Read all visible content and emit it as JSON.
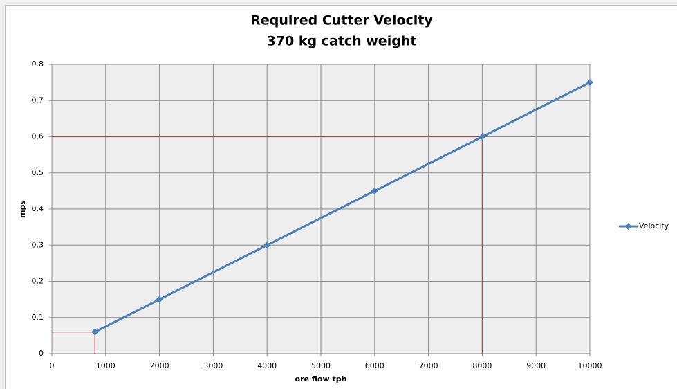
{
  "chart_data": {
    "type": "line",
    "title": [
      "Required Cutter Velocity",
      "370 kg catch weight"
    ],
    "x_label": "ore flow tph",
    "y_label": "mps",
    "x": [
      800,
      2000,
      4000,
      6000,
      8000,
      10000
    ],
    "series": [
      {
        "name": "Velocity",
        "color": "#4a7ebb",
        "values": [
          0.06,
          0.15,
          0.3,
          0.45,
          0.6,
          0.75
        ]
      }
    ],
    "xlim": [
      0,
      10000
    ],
    "xticks": [
      0,
      1000,
      2000,
      3000,
      4000,
      5000,
      6000,
      7000,
      8000,
      9000,
      10000
    ],
    "ylim": [
      0,
      0.8
    ],
    "yticks": [
      0,
      0.1,
      0.2,
      0.3,
      0.4,
      0.5,
      0.6,
      0.7,
      0.8
    ],
    "grid": true,
    "legend": "right",
    "reference_lines": [
      {
        "x": 800,
        "y": 0.06,
        "color": "#e03030"
      },
      {
        "x": 8000,
        "y": 0.6,
        "color": "#e03030"
      }
    ]
  }
}
